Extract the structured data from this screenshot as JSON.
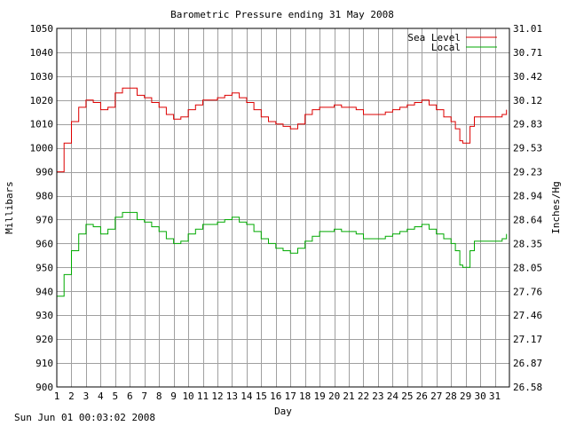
{
  "footer_timestamp": "Sun Jun 01 00:03:02 2008",
  "colors": {
    "sea_level": "#dd0000",
    "local": "#00aa00",
    "grid": "#a0a0a0"
  },
  "chart_data": {
    "type": "line",
    "title": "Barometric Pressure ending 31 May 2008",
    "xlabel": "Day",
    "ylabel": "Millibars",
    "y2label": "Inches/Hg",
    "grid": true,
    "legend_position": "top-right",
    "ylim": [
      900,
      1050
    ],
    "xlim": [
      1,
      32
    ],
    "x_ticks": [
      "1",
      "2",
      "3",
      "4",
      "5",
      "6",
      "7",
      "8",
      "9",
      "10",
      "11",
      "12",
      "13",
      "14",
      "15",
      "16",
      "17",
      "18",
      "19",
      "20",
      "21",
      "22",
      "23",
      "24",
      "25",
      "26",
      "27",
      "28",
      "29",
      "30",
      "31"
    ],
    "y_ticks": [
      "1050",
      "1040",
      "1030",
      "1020",
      "1010",
      "1000",
      "990",
      "980",
      "970",
      "960",
      "950",
      "940",
      "930",
      "920",
      "910",
      "900"
    ],
    "y2_ticks": [
      "31.01",
      "30.71",
      "30.42",
      "30.12",
      "29.83",
      "29.53",
      "29.23",
      "28.94",
      "28.64",
      "28.35",
      "28.05",
      "27.76",
      "27.46",
      "27.17",
      "26.87",
      "26.58"
    ],
    "series": [
      {
        "name": "Sea Level",
        "color": "#dd0000",
        "x": [
          1,
          1.5,
          2,
          2.5,
          3,
          3.5,
          4,
          4.5,
          5,
          5.5,
          6,
          6.5,
          7,
          7.5,
          8,
          8.5,
          9,
          9.5,
          10,
          10.5,
          11,
          11.5,
          12,
          12.5,
          13,
          13.5,
          14,
          14.5,
          15,
          15.5,
          16,
          16.5,
          17,
          17.5,
          18,
          18.5,
          19,
          19.5,
          20,
          20.5,
          21,
          21.5,
          22,
          22.5,
          23,
          23.5,
          24,
          24.5,
          25,
          25.5,
          26,
          26.5,
          27,
          27.5,
          28,
          28.3,
          28.6,
          28.8,
          29,
          29.3,
          29.6,
          30,
          30.5,
          31,
          31.5,
          31.8
        ],
        "values": [
          990,
          1002,
          1011,
          1017,
          1020,
          1019,
          1016,
          1017,
          1023,
          1025,
          1025,
          1022,
          1021,
          1019,
          1017,
          1014,
          1012,
          1013,
          1016,
          1018,
          1020,
          1020,
          1021,
          1022,
          1023,
          1021,
          1019,
          1016,
          1013,
          1011,
          1010,
          1009,
          1008,
          1010,
          1014,
          1016,
          1017,
          1017,
          1018,
          1017,
          1017,
          1016,
          1014,
          1014,
          1014,
          1015,
          1016,
          1017,
          1018,
          1019,
          1020,
          1018,
          1016,
          1013,
          1011,
          1008,
          1003,
          1002,
          1002,
          1009,
          1013,
          1013,
          1013,
          1013,
          1014,
          1016
        ]
      },
      {
        "name": "Local",
        "color": "#00aa00",
        "x": [
          1,
          1.5,
          2,
          2.5,
          3,
          3.5,
          4,
          4.5,
          5,
          5.5,
          6,
          6.5,
          7,
          7.5,
          8,
          8.5,
          9,
          9.5,
          10,
          10.5,
          11,
          11.5,
          12,
          12.5,
          13,
          13.5,
          14,
          14.5,
          15,
          15.5,
          16,
          16.5,
          17,
          17.5,
          18,
          18.5,
          19,
          19.5,
          20,
          20.5,
          21,
          21.5,
          22,
          22.5,
          23,
          23.5,
          24,
          24.5,
          25,
          25.5,
          26,
          26.5,
          27,
          27.5,
          28,
          28.3,
          28.6,
          28.8,
          29,
          29.3,
          29.6,
          30,
          30.5,
          31,
          31.5,
          31.8
        ],
        "values": [
          938,
          947,
          957,
          964,
          968,
          967,
          964,
          966,
          971,
          973,
          973,
          970,
          969,
          967,
          965,
          962,
          960,
          961,
          964,
          966,
          968,
          968,
          969,
          970,
          971,
          969,
          968,
          965,
          962,
          960,
          958,
          957,
          956,
          958,
          961,
          963,
          965,
          965,
          966,
          965,
          965,
          964,
          962,
          962,
          962,
          963,
          964,
          965,
          966,
          967,
          968,
          966,
          964,
          962,
          960,
          957,
          951,
          950,
          950,
          957,
          961,
          961,
          961,
          961,
          962,
          964
        ]
      }
    ]
  }
}
